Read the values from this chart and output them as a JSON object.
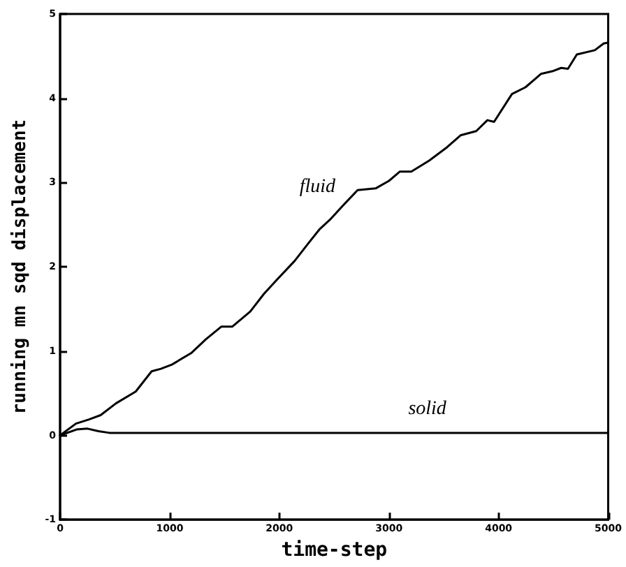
{
  "chart_data": {
    "type": "line",
    "xlabel": "time-step",
    "ylabel": "running mn sqd displacement",
    "xlim": [
      0,
      5000
    ],
    "xticks": [
      0,
      1000,
      2000,
      3000,
      4000,
      5000
    ],
    "ylim": [
      -1,
      5
    ],
    "yticks": [
      -1,
      0,
      1,
      2,
      3,
      4,
      5
    ],
    "grid": false,
    "marker": "none",
    "line_style": "solid",
    "series": [
      {
        "name": "fluid",
        "color": "#000000",
        "x": [
          0,
          145,
          265,
          370,
          510,
          690,
          835,
          920,
          1020,
          1200,
          1330,
          1470,
          1570,
          1735,
          1860,
          1980,
          2140,
          2265,
          2370,
          2470,
          2590,
          2714,
          2878,
          3000,
          3100,
          3204,
          3367,
          3531,
          3653,
          3796,
          3898,
          3959,
          4122,
          4245,
          4388,
          4490,
          4571,
          4633,
          4714,
          4878,
          4959,
          5000
        ],
        "values": [
          0,
          0.14,
          0.19,
          0.24,
          0.38,
          0.52,
          0.76,
          0.79,
          0.84,
          0.98,
          1.14,
          1.29,
          1.29,
          1.47,
          1.68,
          1.85,
          2.07,
          2.28,
          2.45,
          2.57,
          2.74,
          2.91,
          2.93,
          3.02,
          3.13,
          3.13,
          3.26,
          3.42,
          3.56,
          3.61,
          3.74,
          3.72,
          4.05,
          4.13,
          4.29,
          4.32,
          4.36,
          4.35,
          4.52,
          4.57,
          4.65,
          4.66
        ]
      },
      {
        "name": "solid",
        "color": "#000000",
        "x": [
          0,
          150,
          250,
          350,
          450,
          5000
        ],
        "values": [
          0,
          0.07,
          0.08,
          0.05,
          0.03,
          0.03
        ]
      }
    ]
  }
}
